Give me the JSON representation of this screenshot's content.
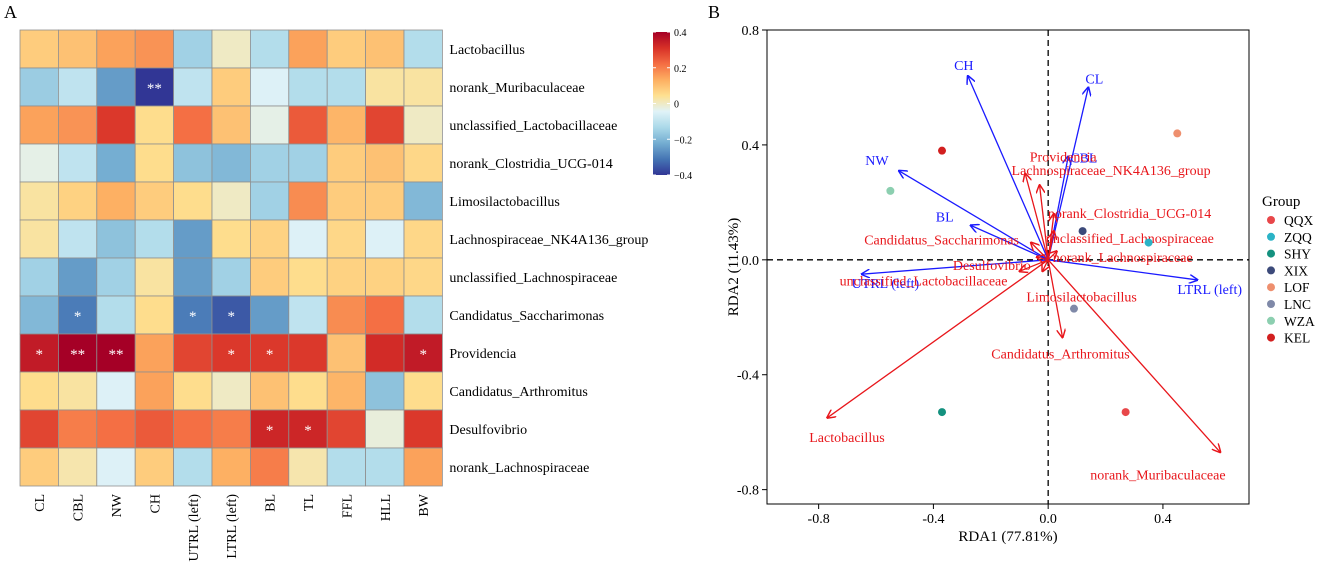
{
  "panel_labels": [
    "A",
    "B"
  ],
  "chart_data": [
    {
      "type": "heatmap",
      "panel": "A",
      "columns": [
        "CL",
        "CBL",
        "NW",
        "CH",
        "UTRL (left)",
        "LTRL (left)",
        "BL",
        "TL",
        "FFL",
        "HLL",
        "BW"
      ],
      "rows": [
        "Lactobacillus",
        "norank_Muribaculaceae",
        "unclassified_Lactobacillaceae",
        "norank_Clostridia_UCG-014",
        "Limosilactobacillus",
        "Lachnospiraceae_NK4A136_group",
        "unclassified_Lachnospiraceae",
        "Candidatus_Saccharimonas",
        "Providencia",
        "Candidatus_Arthromitus",
        "Desulfovibrio",
        "norank_Lachnospiraceae"
      ],
      "values": [
        [
          0.08,
          0.1,
          0.15,
          0.17,
          -0.15,
          0.0,
          -0.12,
          0.15,
          0.08,
          0.1,
          -0.12
        ],
        [
          -0.16,
          -0.1,
          -0.25,
          -0.42,
          -0.1,
          0.08,
          -0.05,
          -0.12,
          -0.12,
          0.03,
          0.03
        ],
        [
          0.15,
          0.17,
          0.3,
          0.05,
          0.22,
          0.1,
          -0.03,
          0.25,
          0.12,
          0.28,
          0.0
        ],
        [
          -0.03,
          -0.1,
          -0.22,
          0.05,
          -0.18,
          -0.2,
          -0.15,
          -0.15,
          0.08,
          0.1,
          0.06
        ],
        [
          0.03,
          0.07,
          0.13,
          0.08,
          0.05,
          0.0,
          -0.15,
          0.18,
          0.08,
          0.08,
          -0.2
        ],
        [
          0.03,
          -0.1,
          -0.18,
          -0.12,
          -0.25,
          0.05,
          0.07,
          -0.05,
          0.06,
          -0.05,
          0.06
        ],
        [
          -0.15,
          -0.25,
          -0.15,
          0.03,
          -0.25,
          -0.15,
          0.08,
          0.05,
          0.07,
          0.07,
          0.06
        ],
        [
          -0.2,
          -0.3,
          -0.12,
          0.05,
          -0.3,
          -0.35,
          -0.25,
          -0.1,
          0.18,
          0.22,
          -0.12
        ],
        [
          0.35,
          0.4,
          0.4,
          0.15,
          0.28,
          0.3,
          0.3,
          0.3,
          0.1,
          0.32,
          0.35
        ],
        [
          0.05,
          0.03,
          -0.05,
          0.15,
          0.05,
          0.0,
          0.1,
          0.05,
          0.12,
          -0.18,
          0.05
        ],
        [
          0.28,
          0.2,
          0.22,
          0.25,
          0.22,
          0.2,
          0.33,
          0.33,
          0.28,
          -0.02,
          0.3
        ],
        [
          0.08,
          0.02,
          -0.05,
          0.08,
          -0.12,
          0.13,
          0.2,
          0.02,
          -0.12,
          -0.12,
          0.15
        ]
      ],
      "significance": [
        [
          "",
          "",
          "",
          "",
          "",
          "",
          "",
          "",
          "",
          "",
          ""
        ],
        [
          "",
          "",
          "",
          "**",
          "",
          "",
          "",
          "",
          "",
          "",
          ""
        ],
        [
          "",
          "",
          "",
          "",
          "",
          "",
          "",
          "",
          "",
          "",
          ""
        ],
        [
          "",
          "",
          "",
          "",
          "",
          "",
          "",
          "",
          "",
          "",
          ""
        ],
        [
          "",
          "",
          "",
          "",
          "",
          "",
          "",
          "",
          "",
          "",
          ""
        ],
        [
          "",
          "",
          "",
          "",
          "",
          "",
          "",
          "",
          "",
          "",
          ""
        ],
        [
          "",
          "",
          "",
          "",
          "",
          "",
          "",
          "",
          "",
          "",
          ""
        ],
        [
          "",
          "*",
          "",
          "",
          "*",
          "*",
          "",
          "",
          "",
          "",
          ""
        ],
        [
          "*",
          "**",
          "**",
          "",
          "",
          "*",
          "*",
          "",
          "",
          "",
          "*"
        ],
        [
          "",
          "",
          "",
          "",
          "",
          "",
          "",
          "",
          "",
          "",
          ""
        ],
        [
          "",
          "",
          "",
          "",
          "",
          "",
          "*",
          "*",
          "",
          "",
          ""
        ],
        [
          "",
          "",
          "",
          "",
          "",
          "",
          "",
          "",
          "",
          "",
          ""
        ]
      ],
      "color_scale": {
        "min": -0.4,
        "max": 0.4,
        "ticks": [
          0.4,
          0.2,
          0,
          -0.2,
          -0.4
        ],
        "tick_labels": [
          "0.4",
          "0.2",
          "0",
          "−0.2",
          "−0.4"
        ],
        "stops": [
          "#313695",
          "#4575b4",
          "#74add1",
          "#abd9e9",
          "#e0f3f8",
          "#fee090",
          "#fdae61",
          "#f46d43",
          "#d73027",
          "#a50026"
        ]
      }
    },
    {
      "type": "scatter",
      "panel": "B",
      "xlabel": "RDA1 (77.81%)",
      "ylabel": "RDA2 (11.43%)",
      "xlim": [
        -0.98,
        0.7
      ],
      "ylim": [
        -0.85,
        0.8
      ],
      "xticks": [
        -0.8,
        -0.4,
        0.0,
        0.4
      ],
      "xtick_labels": [
        "-0.8",
        "-0.4",
        "0.0",
        "0.4"
      ],
      "yticks": [
        -0.8,
        -0.4,
        0.0,
        0.4,
        0.8
      ],
      "ytick_labels": [
        "-0.8",
        "-0.4",
        "0.0",
        "0.4",
        "0.8"
      ],
      "legend_title": "Group",
      "legend_position": "right",
      "groups": [
        {
          "name": "QQX",
          "color": "#e8474a",
          "x": 0.27,
          "y": -0.53
        },
        {
          "name": "ZQQ",
          "color": "#2bb3c6",
          "x": 0.35,
          "y": 0.06
        },
        {
          "name": "SHY",
          "color": "#14917f",
          "x": -0.37,
          "y": -0.53
        },
        {
          "name": "XIX",
          "color": "#3c4a7a",
          "x": 0.12,
          "y": 0.1
        },
        {
          "name": "LOF",
          "color": "#ee8f6e",
          "x": 0.45,
          "y": 0.44
        },
        {
          "name": "LNC",
          "color": "#7f89a8",
          "x": 0.09,
          "y": -0.17
        },
        {
          "name": "WZA",
          "color": "#8ccfb0",
          "x": -0.55,
          "y": 0.24
        },
        {
          "name": "KEL",
          "color": "#d21f1f",
          "x": -0.37,
          "y": 0.38
        }
      ],
      "env_arrows": [
        {
          "label": "CH",
          "x": -0.28,
          "y": 0.64
        },
        {
          "label": "CL",
          "x": 0.14,
          "y": 0.6
        },
        {
          "label": "CBL",
          "x": 0.07,
          "y": 0.36
        },
        {
          "label": "NW",
          "x": -0.52,
          "y": 0.31
        },
        {
          "label": "BL",
          "x": -0.27,
          "y": 0.12
        },
        {
          "label": "UTRL (left)",
          "x": -0.65,
          "y": -0.05
        },
        {
          "label": "LTRL (left)",
          "x": 0.52,
          "y": -0.07
        }
      ],
      "species_arrows": [
        {
          "label": "Providencia",
          "x": -0.08,
          "y": 0.3
        },
        {
          "label": "Lachnospiraceae_NK4A136_group",
          "x": -0.03,
          "y": 0.26
        },
        {
          "label": "norank_Clostridia_UCG-014",
          "x": 0.02,
          "y": 0.16
        },
        {
          "label": "unclassified_Lachnospiraceae",
          "x": 0.02,
          "y": 0.1
        },
        {
          "label": "Candidatus_Saccharimonas",
          "x": -0.06,
          "y": 0.06
        },
        {
          "label": "norank_Lachnospiraceae",
          "x": 0.03,
          "y": 0.03
        },
        {
          "label": "Desulfovibrio",
          "x": -0.04,
          "y": 0.01
        },
        {
          "label": "unclassified_Lactobacillaceae",
          "x": -0.1,
          "y": -0.04
        },
        {
          "label": "Limosilactobacillus",
          "x": -0.02,
          "y": -0.04
        },
        {
          "label": "Candidatus_Arthromitus",
          "x": 0.05,
          "y": -0.27
        },
        {
          "label": "Lactobacillus",
          "x": -0.77,
          "y": -0.55
        },
        {
          "label": "norank_Muribaculaceae",
          "x": 0.6,
          "y": -0.67
        }
      ]
    }
  ]
}
